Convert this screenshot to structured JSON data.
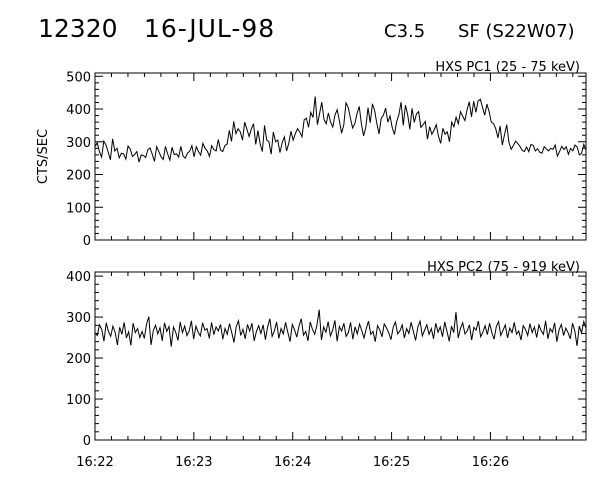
{
  "header": {
    "event_id": "12320",
    "date": "16-JUL-98",
    "flare_class": "C3.5",
    "location": "SF (S22W07)"
  },
  "chart_data": [
    {
      "type": "line",
      "title": "HXS PC1 (25 - 75 keV)",
      "ylabel": "CTS/SEC",
      "xlabel": "",
      "xlim": [
        "16:22:00",
        "16:26:58"
      ],
      "ylim": [
        0,
        510
      ],
      "yticks": [
        0,
        100,
        200,
        300,
        400,
        500
      ],
      "xticks": [
        "16:22",
        "16:23",
        "16:24",
        "16:25",
        "16:26"
      ],
      "series": [
        {
          "values": [
            285,
            297,
            270,
            253,
            302,
            290,
            268,
            245,
            309,
            272,
            280,
            251,
            265,
            263,
            247,
            287,
            278,
            255,
            261,
            270,
            238,
            260,
            258,
            252,
            276,
            281,
            262,
            240,
            285,
            270,
            254,
            246,
            286,
            263,
            244,
            283,
            261,
            263,
            253,
            286,
            256,
            250,
            265,
            271,
            288,
            254,
            285,
            270,
            259,
            295,
            280,
            272,
            255,
            288,
            276,
            272,
            307,
            275,
            270,
            288,
            293,
            335,
            301,
            362,
            325,
            340,
            330,
            305,
            360,
            338,
            316,
            339,
            355,
            292,
            334,
            294,
            270,
            350,
            305,
            300,
            262,
            330,
            300,
            305,
            267,
            297,
            315,
            272,
            295,
            332,
            305,
            325,
            340,
            330,
            315,
            367,
            372,
            344,
            390,
            374,
            438,
            352,
            386,
            421,
            368,
            355,
            388,
            360,
            345,
            382,
            398,
            364,
            326,
            352,
            419,
            405,
            372,
            342,
            355,
            386,
            408,
            354,
            318,
            345,
            404,
            358,
            416,
            395,
            356,
            324,
            372,
            381,
            403,
            360,
            379,
            343,
            322,
            361,
            382,
            421,
            350,
            412,
            383,
            338,
            402,
            359,
            385,
            392,
            344,
            352,
            362,
            308,
            346,
            323,
            336,
            352,
            317,
            295,
            341,
            323,
            330,
            300,
            360,
            346,
            375,
            355,
            392,
            378,
            365,
            398,
            422,
            376,
            424,
            390,
            425,
            430,
            405,
            381,
            415,
            392,
            360,
            356,
            340,
            312,
            348,
            290,
            322,
            352,
            298,
            277,
            288,
            302,
            295,
            286,
            274,
            270,
            284,
            270,
            292,
            289,
            272,
            279,
            268,
            265,
            285,
            278,
            272,
            280,
            277,
            290,
            256,
            270,
            286,
            276,
            285,
            262,
            280,
            272,
            290,
            284,
            260,
            265,
            292,
            275
          ]
        }
      ]
    },
    {
      "type": "line",
      "title": "HXS PC2 (75 - 919 keV)",
      "ylabel": "",
      "xlabel": "",
      "xlim": [
        "16:22:00",
        "16:26:58"
      ],
      "ylim": [
        0,
        410
      ],
      "yticks": [
        0,
        100,
        200,
        300,
        400
      ],
      "xticks": [
        "16:22",
        "16:23",
        "16:24",
        "16:25",
        "16:26"
      ],
      "series": [
        {
          "values": [
            262,
            255,
            281,
            270,
            241,
            286,
            265,
            253,
            278,
            262,
            232,
            275,
            258,
            287,
            249,
            264,
            231,
            285,
            262,
            272,
            250,
            265,
            248,
            283,
            301,
            232,
            267,
            280,
            259,
            274,
            242,
            286,
            265,
            277,
            228,
            276,
            263,
            243,
            288,
            262,
            278,
            255,
            266,
            291,
            246,
            278,
            263,
            254,
            286,
            268,
            272,
            248,
            287,
            257,
            276,
            266,
            282,
            246,
            272,
            258,
            284,
            262,
            238,
            277,
            291,
            255,
            270,
            247,
            282,
            266,
            285,
            242,
            265,
            279,
            260,
            281,
            245,
            276,
            296,
            253,
            266,
            288,
            248,
            272,
            259,
            287,
            263,
            240,
            282,
            269,
            251,
            278,
            296,
            256,
            265,
            242,
            288,
            270,
            258,
            281,
            318,
            244,
            276,
            263,
            289,
            254,
            268,
            292,
            241,
            277,
            266,
            285,
            253,
            262,
            287,
            246,
            276,
            259,
            283,
            267,
            249,
            272,
            290,
            258,
            265,
            240,
            279,
            269,
            252,
            283,
            274,
            262,
            245,
            275,
            288,
            259,
            266,
            281,
            249,
            272,
            260,
            287,
            265,
            243,
            276,
            290,
            254,
            268,
            281,
            258,
            272,
            247,
            285,
            263,
            276,
            252,
            288,
            265,
            241,
            278,
            262,
            312,
            249,
            272,
            286,
            259,
            266,
            281,
            244,
            275,
            268,
            290,
            252,
            263,
            279,
            257,
            285,
            262,
            246,
            277,
            289,
            255,
            268,
            281,
            249,
            273,
            262,
            287,
            258,
            266,
            244,
            279,
            270,
            255,
            284,
            262,
            276,
            250,
            281,
            267,
            258,
            291,
            247,
            272,
            263,
            286,
            240,
            269,
            282,
            255,
            273,
            262,
            247,
            285,
            266,
            230,
            278,
            261,
            289,
            273
          ]
        }
      ]
    }
  ]
}
